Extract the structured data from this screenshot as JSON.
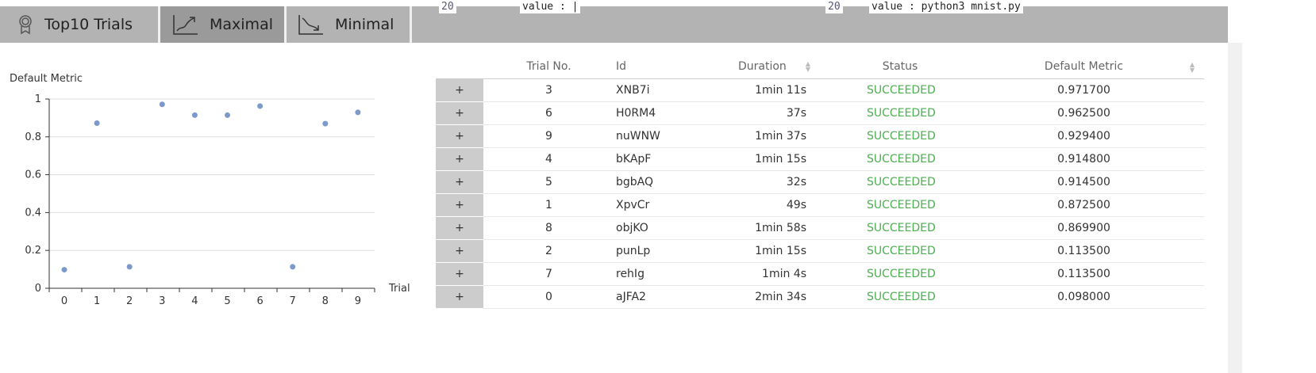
{
  "background_code": {
    "left_line": "20",
    "left_text": "value : |",
    "right_line": "20",
    "right_text": "value : python3 mnist.py"
  },
  "tabs": [
    {
      "label": "Top10 Trials",
      "icon": "award-icon",
      "active": false
    },
    {
      "label": "Maximal",
      "icon": "trend-up-icon",
      "active": true
    },
    {
      "label": "Minimal",
      "icon": "trend-down-icon",
      "active": false
    }
  ],
  "chart_data": {
    "type": "scatter",
    "ylabel": "Default Metric",
    "xlabel": "Trial",
    "x": [
      0,
      1,
      2,
      3,
      4,
      5,
      6,
      7,
      8,
      9
    ],
    "y": [
      0.098,
      0.8725,
      0.1135,
      0.9717,
      0.9148,
      0.9145,
      0.9625,
      0.1135,
      0.8699,
      0.9294
    ],
    "ylim": [
      0,
      1
    ],
    "yticks": [
      "0",
      "0.2",
      "0.4",
      "0.6",
      "0.8",
      "1"
    ],
    "xticks": [
      "0",
      "1",
      "2",
      "3",
      "4",
      "5",
      "6",
      "7",
      "8",
      "9"
    ],
    "grid": true,
    "color": "#7b9ac9"
  },
  "table": {
    "headers": [
      "",
      "Trial No.",
      "Id",
      "Duration",
      "Status",
      "Default Metric"
    ],
    "expand_label": "+",
    "rows": [
      [
        "3",
        "XNB7i",
        "1min 11s",
        "SUCCEEDED",
        "0.971700"
      ],
      [
        "6",
        "H0RM4",
        "37s",
        "SUCCEEDED",
        "0.962500"
      ],
      [
        "9",
        "nuWNW",
        "1min 37s",
        "SUCCEEDED",
        "0.929400"
      ],
      [
        "4",
        "bKApF",
        "1min 15s",
        "SUCCEEDED",
        "0.914800"
      ],
      [
        "5",
        "bgbAQ",
        "32s",
        "SUCCEEDED",
        "0.914500"
      ],
      [
        "1",
        "XpvCr",
        "49s",
        "SUCCEEDED",
        "0.872500"
      ],
      [
        "8",
        "objKO",
        "1min 58s",
        "SUCCEEDED",
        "0.869900"
      ],
      [
        "2",
        "punLp",
        "1min 15s",
        "SUCCEEDED",
        "0.113500"
      ],
      [
        "7",
        "rehIg",
        "1min 4s",
        "SUCCEEDED",
        "0.113500"
      ],
      [
        "0",
        "aJFA2",
        "2min 34s",
        "SUCCEEDED",
        "0.098000"
      ]
    ]
  },
  "status_color": "#4caf50"
}
